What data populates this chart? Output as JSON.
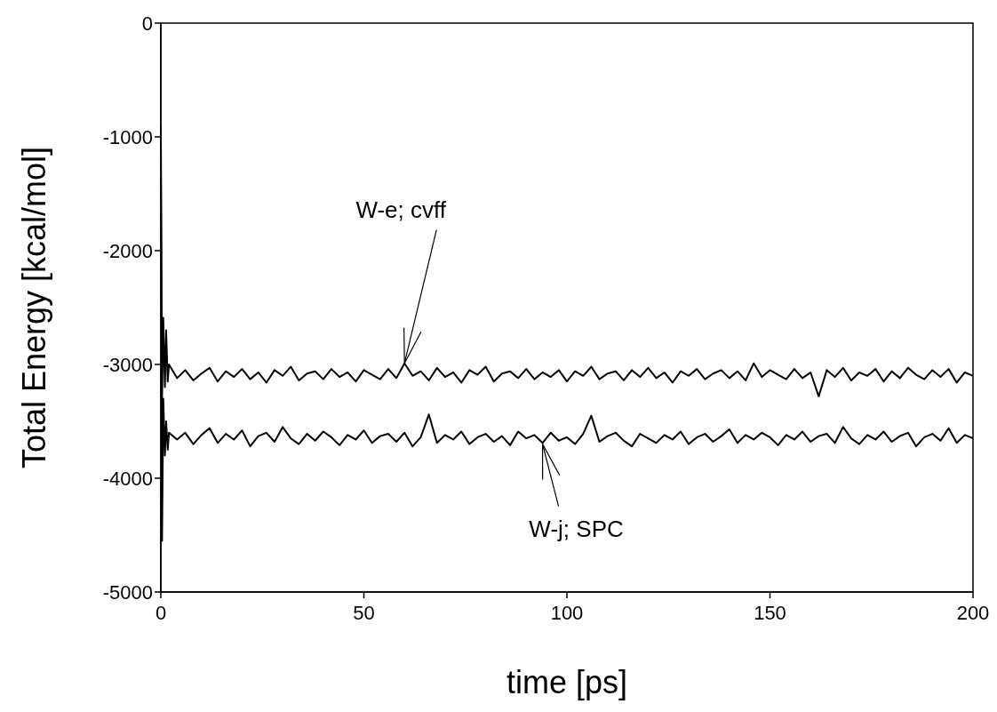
{
  "chart_data": {
    "type": "line",
    "xlabel": "time [ps]",
    "ylabel": "Total Energy [kcal/mol]",
    "xlim": [
      0,
      200
    ],
    "xticks": [
      0,
      50,
      100,
      150,
      200
    ],
    "ylim": [
      -5000,
      0
    ],
    "yticks": [
      -5000,
      -4000,
      -3000,
      -2000,
      -1000,
      0
    ],
    "grid": false,
    "legend": false,
    "marker": "none",
    "line_style": "solid",
    "series": [
      {
        "color": "#000000",
        "x": [
          0,
          0.3,
          0.6,
          1,
          1.3,
          1.7,
          2,
          4,
          6,
          8,
          10,
          12,
          14,
          16,
          18,
          20,
          22,
          24,
          26,
          28,
          30,
          32,
          34,
          36,
          38,
          40,
          42,
          44,
          46,
          48,
          50,
          52,
          54,
          56,
          58,
          60,
          62,
          64,
          66,
          68,
          70,
          72,
          74,
          76,
          78,
          80,
          82,
          84,
          86,
          88,
          90,
          92,
          94,
          96,
          98,
          100,
          102,
          104,
          106,
          108,
          110,
          112,
          114,
          116,
          118,
          120,
          122,
          124,
          126,
          128,
          130,
          132,
          134,
          136,
          138,
          140,
          142,
          144,
          146,
          148,
          150,
          152,
          154,
          156,
          158,
          160,
          162,
          164,
          166,
          168,
          170,
          172,
          174,
          176,
          178,
          180,
          182,
          184,
          186,
          188,
          190,
          192,
          194,
          196,
          198,
          200
        ],
        "values": [
          -900,
          -3300,
          -2590,
          -3200,
          -2700,
          -3150,
          -3000,
          -3120,
          -3050,
          -3140,
          -3080,
          -3030,
          -3150,
          -3060,
          -3110,
          -3040,
          -3130,
          -3070,
          -3160,
          -3050,
          -3100,
          -3020,
          -3140,
          -3080,
          -3060,
          -3130,
          -3040,
          -3110,
          -3070,
          -3150,
          -3050,
          -3090,
          -3130,
          -3040,
          -3120,
          -2990,
          -3100,
          -3060,
          -3140,
          -3030,
          -3110,
          -3070,
          -3160,
          -3050,
          -3090,
          -3020,
          -3150,
          -3080,
          -3060,
          -3120,
          -3040,
          -3130,
          -3070,
          -3110,
          -3050,
          -3150,
          -3060,
          -3100,
          -3020,
          -3130,
          -3080,
          -3060,
          -3140,
          -3050,
          -3110,
          -3030,
          -3120,
          -3070,
          -3160,
          -3060,
          -3100,
          -3040,
          -3130,
          -3080,
          -3050,
          -3120,
          -3060,
          -3140,
          -2990,
          -3110,
          -3050,
          -3090,
          -3130,
          -3040,
          -3120,
          -3070,
          -3280,
          -3050,
          -3110,
          -3030,
          -3140,
          -3070,
          -3100,
          -3040,
          -3150,
          -3060,
          -3120,
          -3030,
          -3090,
          -3130,
          -3050,
          -3110,
          -3040,
          -3160,
          -3070,
          -3100
        ]
      },
      {
        "color": "#000000",
        "x": [
          0,
          0.3,
          0.6,
          1,
          1.3,
          1.7,
          2,
          4,
          6,
          8,
          10,
          12,
          14,
          16,
          18,
          20,
          22,
          24,
          26,
          28,
          30,
          32,
          34,
          36,
          38,
          40,
          42,
          44,
          46,
          48,
          50,
          52,
          54,
          56,
          58,
          60,
          62,
          64,
          66,
          68,
          70,
          72,
          74,
          76,
          78,
          80,
          82,
          84,
          86,
          88,
          90,
          92,
          94,
          96,
          98,
          100,
          102,
          104,
          106,
          108,
          110,
          112,
          114,
          116,
          118,
          120,
          122,
          124,
          126,
          128,
          130,
          132,
          134,
          136,
          138,
          140,
          142,
          144,
          146,
          148,
          150,
          152,
          154,
          156,
          158,
          160,
          162,
          164,
          166,
          168,
          170,
          172,
          174,
          176,
          178,
          180,
          182,
          184,
          186,
          188,
          190,
          192,
          194,
          196,
          198,
          200
        ],
        "values": [
          -1300,
          -4550,
          -3300,
          -3800,
          -3500,
          -3750,
          -3600,
          -3660,
          -3600,
          -3700,
          -3620,
          -3560,
          -3690,
          -3610,
          -3660,
          -3580,
          -3720,
          -3630,
          -3600,
          -3680,
          -3550,
          -3650,
          -3700,
          -3610,
          -3670,
          -3590,
          -3640,
          -3710,
          -3620,
          -3660,
          -3580,
          -3690,
          -3630,
          -3610,
          -3680,
          -3600,
          -3720,
          -3640,
          -3440,
          -3690,
          -3620,
          -3660,
          -3590,
          -3700,
          -3640,
          -3610,
          -3680,
          -3630,
          -3710,
          -3590,
          -3650,
          -3620,
          -3690,
          -3600,
          -3670,
          -3640,
          -3700,
          -3610,
          -3450,
          -3680,
          -3630,
          -3600,
          -3670,
          -3720,
          -3610,
          -3650,
          -3690,
          -3620,
          -3660,
          -3590,
          -3700,
          -3640,
          -3610,
          -3680,
          -3630,
          -3570,
          -3690,
          -3620,
          -3660,
          -3600,
          -3640,
          -3710,
          -3620,
          -3660,
          -3590,
          -3680,
          -3630,
          -3610,
          -3690,
          -3550,
          -3650,
          -3700,
          -3620,
          -3660,
          -3590,
          -3680,
          -3630,
          -3600,
          -3720,
          -3640,
          -3610,
          -3670,
          -3560,
          -3690,
          -3620,
          -3650
        ]
      }
    ],
    "annotations": [
      {
        "text": "W-e; cvff",
        "x": 60,
        "y": -2990
      },
      {
        "text": "W-j; SPC",
        "x": 94,
        "y": -3700
      }
    ]
  }
}
